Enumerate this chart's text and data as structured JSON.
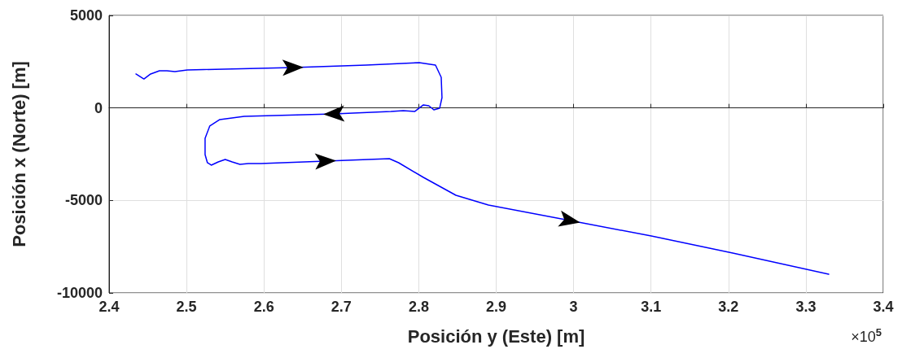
{
  "chart_data": {
    "type": "line",
    "xlabel": "Posición y (Este) [m]",
    "ylabel": "Posición x (Norte) [m]",
    "annotations": [
      "×10$^{5}$"
    ],
    "xlim": [
      2.4,
      3.4
    ],
    "xticks": [
      2.4,
      2.5,
      2.6,
      2.7,
      2.8,
      2.9,
      3,
      3.1,
      3.2,
      3.3,
      3.4
    ],
    "ylim": [
      -10000,
      5000
    ],
    "yticks": [
      -10000,
      -5000,
      0,
      5000
    ],
    "grid": true,
    "line_style": "solid",
    "marker": "none",
    "series": [
      {
        "color": "#0000ff",
        "x": [
          2.4347,
          2.445,
          2.4536,
          2.465,
          2.4747,
          2.485,
          2.501,
          2.522,
          2.638,
          2.732,
          2.8006,
          2.8216,
          2.829,
          2.83,
          2.827,
          2.8195,
          2.813,
          2.806,
          2.795,
          2.78,
          2.764,
          2.6906,
          2.5745,
          2.543,
          2.53,
          2.524,
          2.524,
          2.527,
          2.532,
          2.541,
          2.55,
          2.559,
          2.569,
          2.58,
          2.596,
          2.68,
          2.762,
          2.774,
          2.806,
          2.848,
          2.89,
          2.9952,
          3.1003,
          3.2055,
          3.3295
        ],
        "values": [
          1835,
          1566,
          1835,
          2010,
          2010,
          1966,
          2054,
          2076,
          2186,
          2318,
          2450,
          2318,
          1658,
          558,
          -13,
          -101,
          119,
          163,
          -189,
          -145,
          -189,
          -321,
          -453,
          -629,
          -981,
          -1641,
          -2521,
          -2961,
          -3093,
          -2917,
          -2785,
          -2917,
          -3049,
          -3005,
          -3005,
          -2873,
          -2741,
          -2961,
          -3753,
          -4721,
          -5249,
          -6085,
          -6924,
          -7848,
          -8991
        ]
      }
    ]
  }
}
